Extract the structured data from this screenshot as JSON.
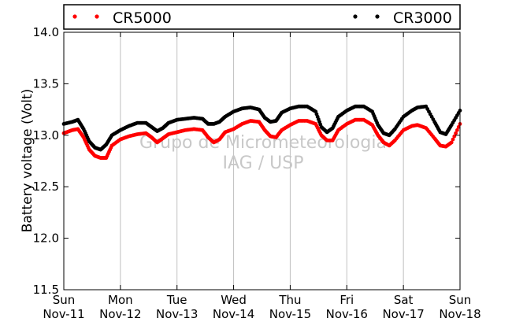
{
  "chart_data": {
    "type": "scatter",
    "ylabel": "Battery voltage (Volt)",
    "ylim": [
      11.5,
      14.0
    ],
    "yticks": [
      11.5,
      12.0,
      12.5,
      13.0,
      13.5,
      14.0
    ],
    "ytick_labels": [
      "11.5",
      "12.0",
      "12.5",
      "13.0",
      "13.5",
      "14.0"
    ],
    "xlim": [
      0,
      7
    ],
    "xticks": [
      {
        "day": "Sun",
        "date": "Nov-11"
      },
      {
        "day": "Mon",
        "date": "Nov-12"
      },
      {
        "day": "Tue",
        "date": "Nov-13"
      },
      {
        "day": "Wed",
        "date": "Nov-14"
      },
      {
        "day": "Thu",
        "date": "Nov-15"
      },
      {
        "day": "Fri",
        "date": "Nov-16"
      },
      {
        "day": "Sat",
        "date": "Nov-17"
      },
      {
        "day": "Sun",
        "date": "Nov-18"
      }
    ],
    "grid": "vertical",
    "legend_position": "top",
    "watermark": [
      "Grupo de Micrometeorologia",
      "IAG / USP"
    ],
    "series": [
      {
        "name": "CR5000",
        "color": "#ff0000",
        "x": [
          0.0,
          0.15,
          0.25,
          0.35,
          0.45,
          0.55,
          0.65,
          0.75,
          0.85,
          1.0,
          1.15,
          1.3,
          1.45,
          1.55,
          1.65,
          1.75,
          1.85,
          2.0,
          2.15,
          2.3,
          2.45,
          2.55,
          2.65,
          2.75,
          2.85,
          3.0,
          3.15,
          3.3,
          3.45,
          3.55,
          3.65,
          3.75,
          3.85,
          4.0,
          4.15,
          4.3,
          4.45,
          4.55,
          4.65,
          4.75,
          4.85,
          5.0,
          5.15,
          5.3,
          5.45,
          5.55,
          5.65,
          5.75,
          5.85,
          6.0,
          6.15,
          6.25,
          6.4,
          6.55,
          6.65,
          6.75,
          6.85,
          7.0
        ],
        "y": [
          13.02,
          13.05,
          13.06,
          12.98,
          12.86,
          12.8,
          12.78,
          12.78,
          12.9,
          12.96,
          12.99,
          13.01,
          13.02,
          12.98,
          12.93,
          12.97,
          13.01,
          13.03,
          13.05,
          13.06,
          13.05,
          12.98,
          12.93,
          12.96,
          13.03,
          13.06,
          13.11,
          13.14,
          13.13,
          13.05,
          12.99,
          12.98,
          13.05,
          13.1,
          13.14,
          13.14,
          13.11,
          13.0,
          12.95,
          12.95,
          13.05,
          13.11,
          13.15,
          13.15,
          13.1,
          13.0,
          12.93,
          12.9,
          12.95,
          13.05,
          13.09,
          13.1,
          13.07,
          12.97,
          12.9,
          12.89,
          12.93,
          13.11
        ]
      },
      {
        "name": "CR3000",
        "color": "#000000",
        "x": [
          0.0,
          0.15,
          0.25,
          0.35,
          0.45,
          0.55,
          0.65,
          0.75,
          0.85,
          1.0,
          1.15,
          1.3,
          1.45,
          1.55,
          1.65,
          1.75,
          1.85,
          2.0,
          2.15,
          2.3,
          2.45,
          2.55,
          2.65,
          2.75,
          2.85,
          3.0,
          3.15,
          3.3,
          3.45,
          3.55,
          3.65,
          3.75,
          3.85,
          4.0,
          4.15,
          4.3,
          4.45,
          4.55,
          4.65,
          4.75,
          4.85,
          5.0,
          5.15,
          5.3,
          5.45,
          5.55,
          5.65,
          5.75,
          5.85,
          6.0,
          6.15,
          6.25,
          6.4,
          6.55,
          6.65,
          6.75,
          6.85,
          7.0
        ],
        "y": [
          13.11,
          13.13,
          13.15,
          13.06,
          12.94,
          12.88,
          12.86,
          12.91,
          13.0,
          13.05,
          13.09,
          13.12,
          13.12,
          13.08,
          13.04,
          13.07,
          13.12,
          13.15,
          13.16,
          13.17,
          13.16,
          13.11,
          13.11,
          13.13,
          13.18,
          13.23,
          13.26,
          13.27,
          13.25,
          13.17,
          13.13,
          13.14,
          13.22,
          13.26,
          13.28,
          13.28,
          13.23,
          13.08,
          13.03,
          13.07,
          13.18,
          13.24,
          13.28,
          13.28,
          13.23,
          13.1,
          13.02,
          13.0,
          13.06,
          13.18,
          13.24,
          13.27,
          13.28,
          13.13,
          13.03,
          13.01,
          13.1,
          13.24
        ]
      }
    ]
  }
}
